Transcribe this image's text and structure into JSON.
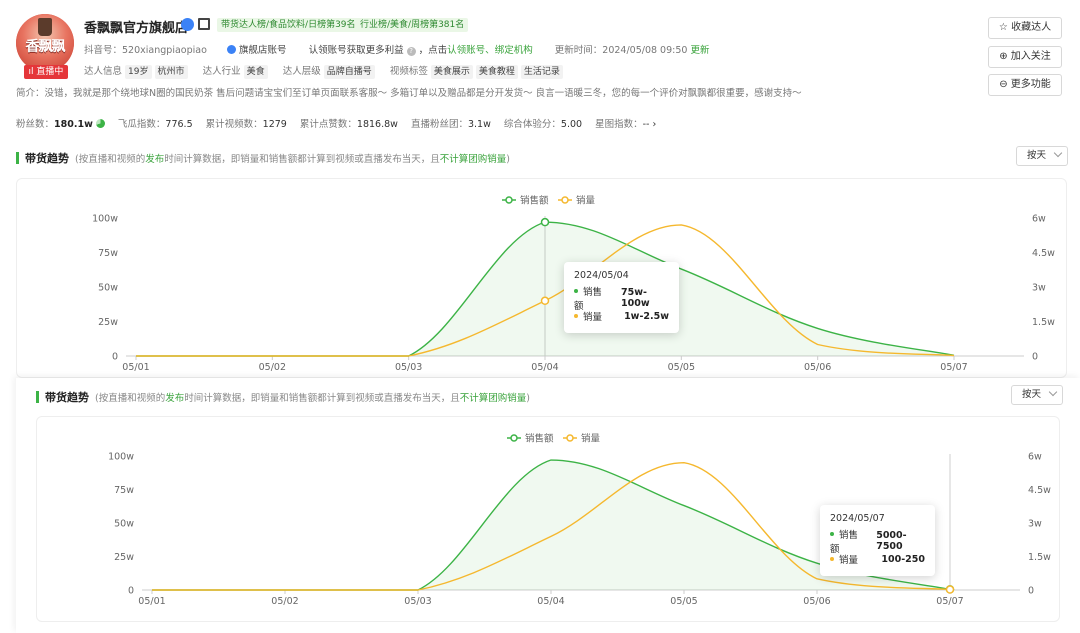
{
  "colors": {
    "green": "#3cb346",
    "orange": "#f5b82e",
    "accent_green_text": "#3aa33c",
    "live_red": "#e5363a"
  },
  "profile": {
    "name": "香飘飘官方旗舰店",
    "avatar_text": "香飘飘",
    "live_badge": "直播中",
    "tag_rank1": "带货达人榜/食品饮料/日榜第39名",
    "tag_rank2": "行业榜/美食/周榜第381名",
    "douyin_label": "抖音号：",
    "douyin_id": "520xiangpiaopiao",
    "account_type": "旗舰店账号",
    "claim_text": "认领账号获取更多利益",
    "claim_click": "，点击",
    "claim_link1": "认领账号",
    "claim_sep": "、",
    "claim_link2": "绑定机构",
    "update_label": "更新时间：",
    "update_time": "2024/05/08 09:50",
    "update_link": "更新",
    "info_label": "达人信息",
    "info_age": "19岁",
    "info_city": "杭州市",
    "industry_label": "达人行业",
    "industry": "美食",
    "level_label": "达人层级",
    "level": "品牌自播号",
    "video_tag_label": "视频标签",
    "video_tags": [
      "美食展示",
      "美食教程",
      "生活记录"
    ],
    "intro": "简介：没错，我就是那个绕地球N圈的国民奶茶 售后问题请宝宝们至订单页面联系客服～ 多箱订单以及赠品都是分开发货～ 良言一语暖三冬，您的每一个评价对飘飘都很重要，感谢支持～"
  },
  "side_buttons": {
    "favorite": "☆ 收藏达人",
    "follow": "⊕ 加入关注",
    "more": "⊖ 更多功能"
  },
  "stats": {
    "fans_label": "粉丝数：",
    "fans": "180.1w",
    "feigua_label": "飞瓜指数：",
    "feigua": "776.5",
    "videos_label": "累计视频数：",
    "videos": "1279",
    "likes_label": "累计点赞数：",
    "likes": "1816.8w",
    "fan_group_label": "直播粉丝团：",
    "fan_group": "3.1w",
    "score_label": "综合体验分：",
    "score": "5.00",
    "star_label": "星图指数：",
    "star": "-- ›"
  },
  "sections": [
    {
      "title": "带货趋势",
      "desc_pre": "(按直播和视频的",
      "desc_g1": "发布",
      "desc_mid": "时间计算数据，即销量和销售额都计算到视频或直播发布当天，且",
      "desc_g2": "不计算团购销量",
      "desc_post": ")",
      "select": "按天",
      "tooltip": {
        "date": "2024/05/04",
        "s1_name": "销售额",
        "s1_val": "75w-100w",
        "s2_name": "销量",
        "s2_val": "1w-2.5w"
      }
    },
    {
      "title": "带货趋势",
      "desc_pre": "(按直播和视频的",
      "desc_g1": "发布",
      "desc_mid": "时间计算数据，即销量和销售额都计算到视频或直播发布当天，且",
      "desc_g2": "不计算团购销量",
      "desc_post": ")",
      "select": "按天",
      "tooltip": {
        "date": "2024/05/07",
        "s1_name": "销售额",
        "s1_val": "5000-7500",
        "s2_name": "销量",
        "s2_val": "100-250"
      }
    }
  ],
  "chart_data": [
    {
      "type": "line",
      "categories": [
        "05/01",
        "05/02",
        "05/03",
        "05/04",
        "05/05",
        "05/06",
        "05/07"
      ],
      "left_ticks": [
        "0",
        "25w",
        "50w",
        "75w",
        "100w"
      ],
      "right_ticks": [
        "0",
        "1.5w",
        "3w",
        "4.5w",
        "6w"
      ],
      "ylim_left": [
        0,
        100
      ],
      "ylim_right": [
        0,
        6
      ],
      "legend_position": "top-center",
      "series": [
        {
          "name": "销售额",
          "axis": "left",
          "color": "#3cb346",
          "values": [
            0,
            0,
            0,
            97,
            63,
            20,
            0.5
          ],
          "area": true
        },
        {
          "name": "销量",
          "axis": "right",
          "color": "#f5b82e",
          "values": [
            0,
            0,
            0,
            2.4,
            5.7,
            0.5,
            0.02
          ]
        }
      ],
      "highlight_index": 3
    },
    {
      "type": "line",
      "categories": [
        "05/01",
        "05/02",
        "05/03",
        "05/04",
        "05/05",
        "05/06",
        "05/07"
      ],
      "left_ticks": [
        "0",
        "25w",
        "50w",
        "75w",
        "100w"
      ],
      "right_ticks": [
        "0",
        "1.5w",
        "3w",
        "4.5w",
        "6w"
      ],
      "ylim_left": [
        0,
        100
      ],
      "ylim_right": [
        0,
        6
      ],
      "legend_position": "top-center",
      "series": [
        {
          "name": "销售额",
          "axis": "left",
          "color": "#3cb346",
          "values": [
            0,
            0,
            0,
            97,
            63,
            20,
            0.5
          ],
          "area": true
        },
        {
          "name": "销量",
          "axis": "right",
          "color": "#f5b82e",
          "values": [
            0,
            0,
            0,
            2.4,
            5.7,
            0.5,
            0.02
          ]
        }
      ],
      "highlight_index": 6
    }
  ]
}
